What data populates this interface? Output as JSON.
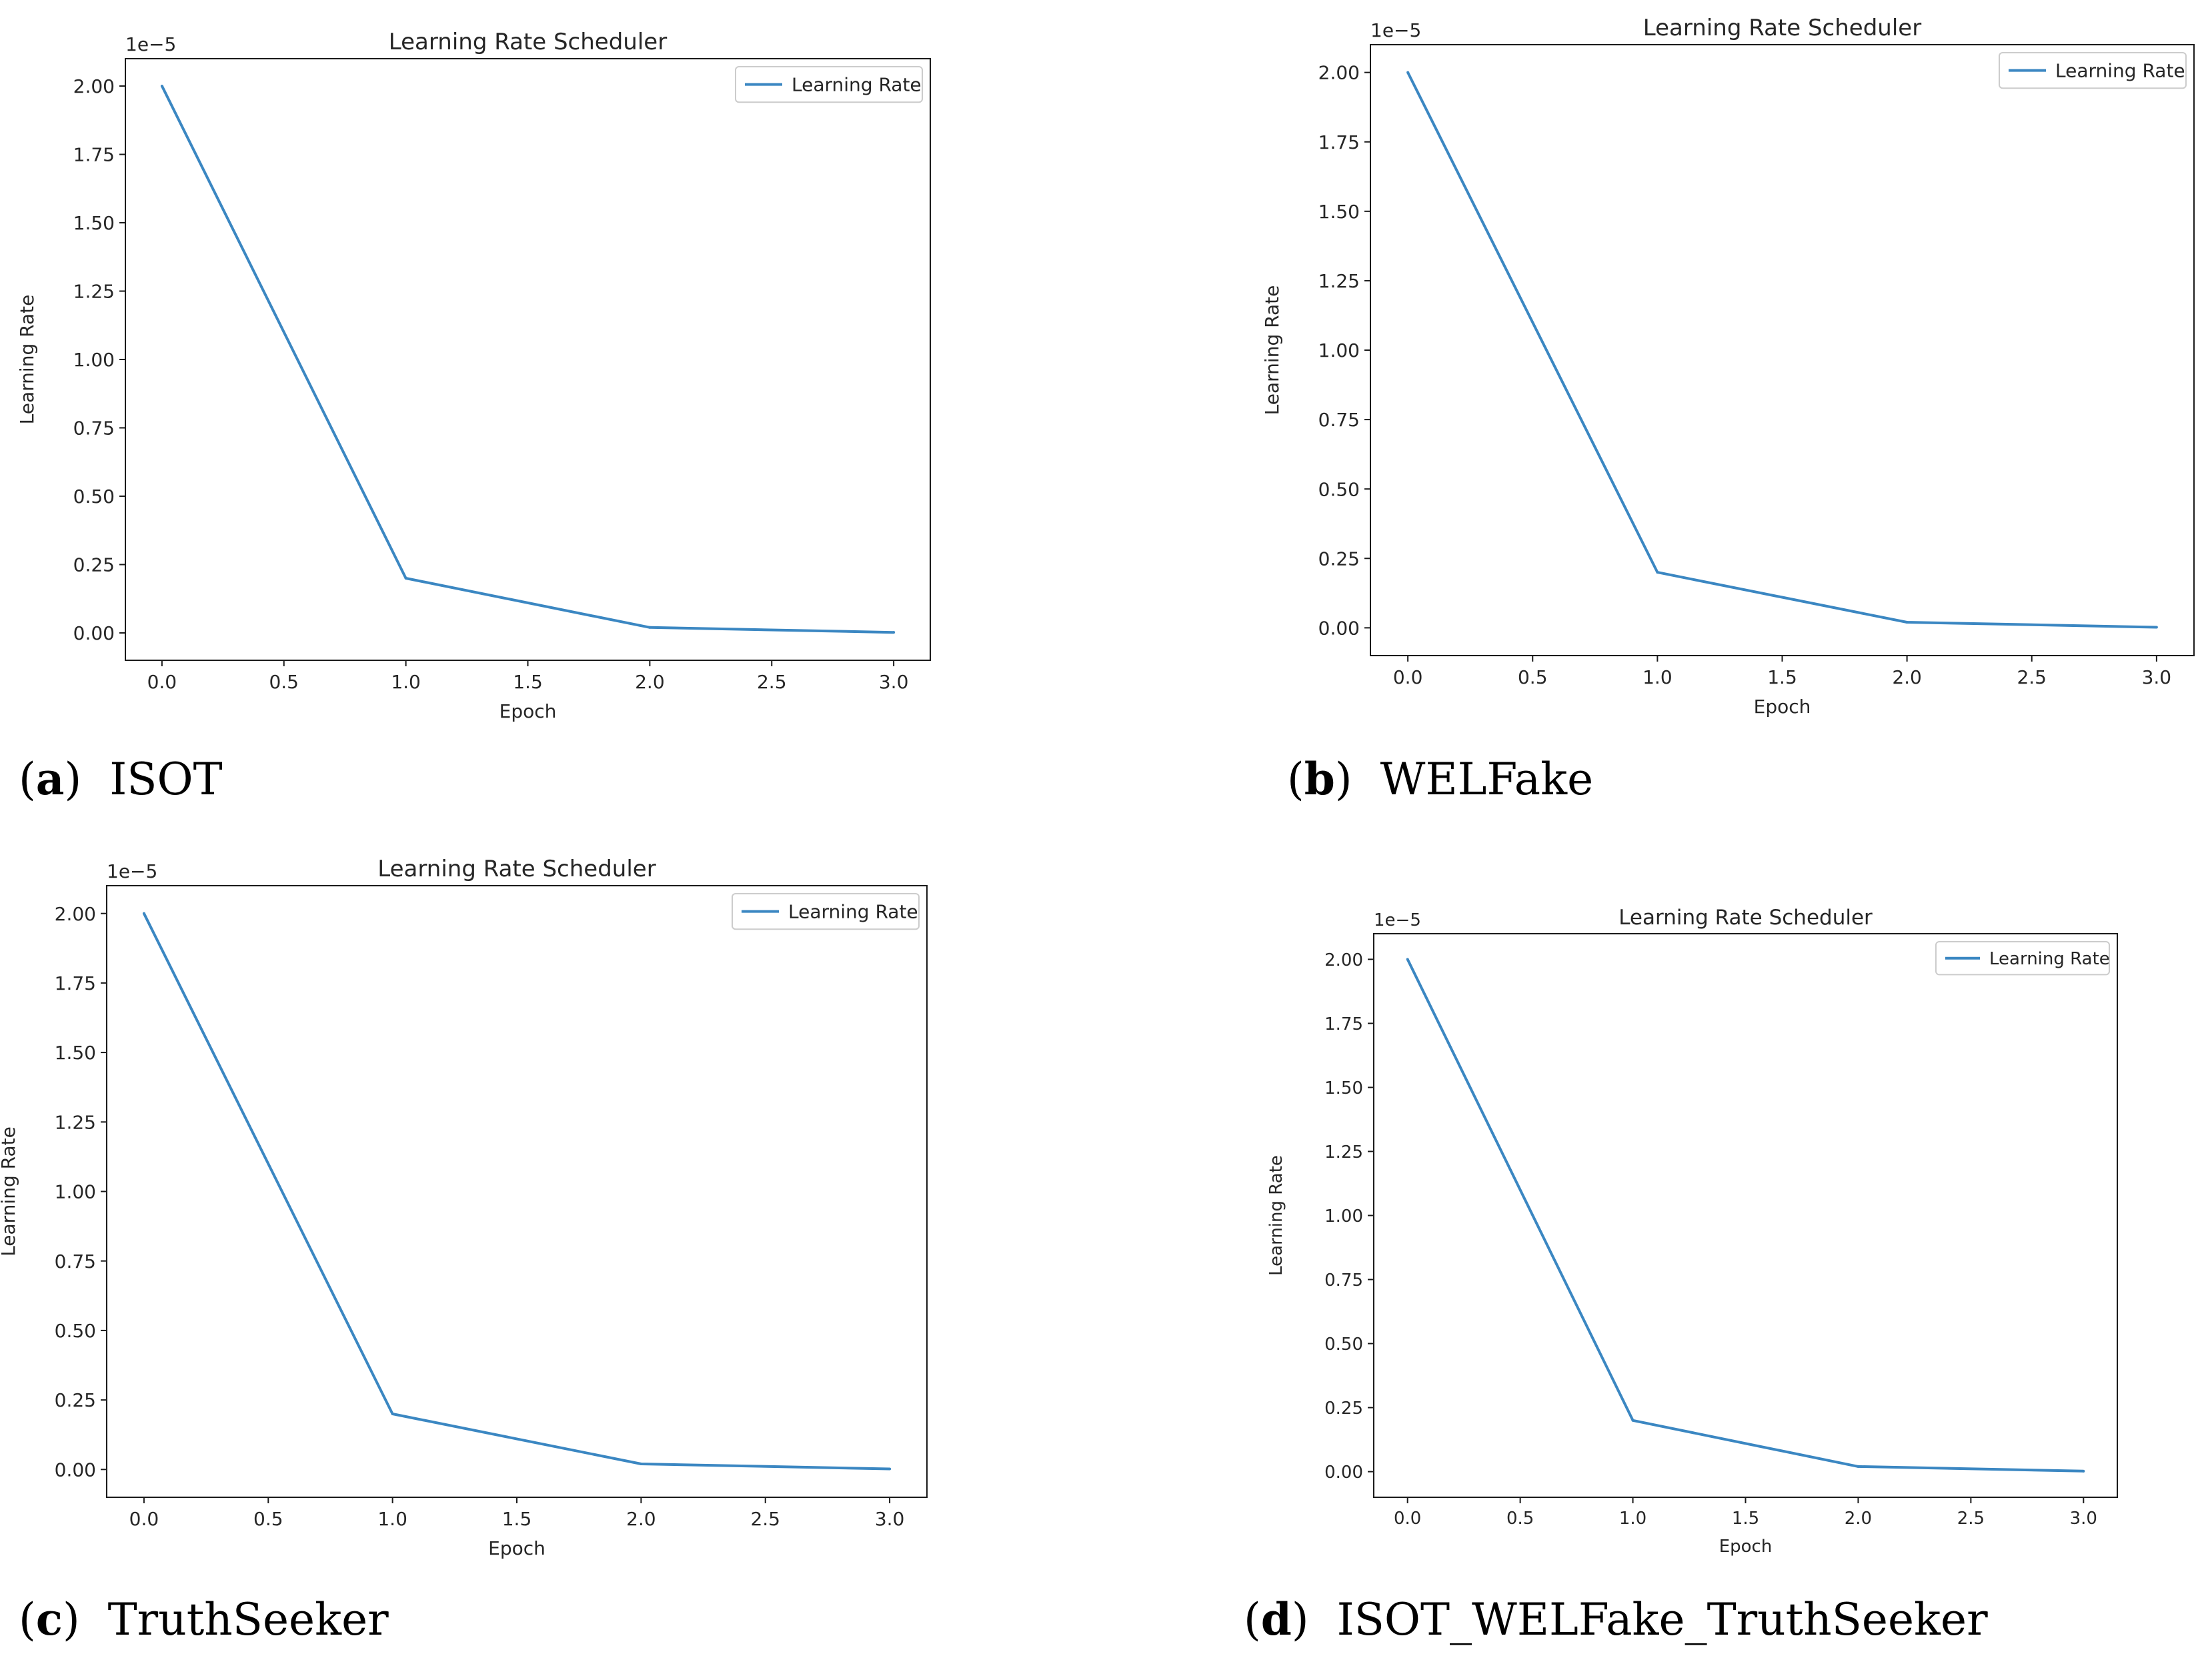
{
  "figure": {
    "panels": [
      {
        "letter": "a",
        "caption": "ISOT",
        "chart": {
          "type": "line",
          "title": "Learning Rate Scheduler",
          "xlabel": "Epoch",
          "ylabel": "Learning Rate",
          "y_offset_label": "1e−5",
          "legend": "Learning Rate",
          "legend_position": "top-right",
          "x": [
            0,
            1,
            2,
            3
          ],
          "y": [
            2.0,
            0.2,
            0.02,
            0.002
          ],
          "xlim": [
            -0.15,
            3.15
          ],
          "ylim": [
            -0.1,
            2.1
          ],
          "xticks": [
            "0.0",
            "0.5",
            "1.0",
            "1.5",
            "2.0",
            "2.5",
            "3.0"
          ],
          "yticks": [
            "0.00",
            "0.25",
            "0.50",
            "0.75",
            "1.00",
            "1.25",
            "1.50",
            "1.75",
            "2.00"
          ],
          "color": "#3b87c2"
        }
      },
      {
        "letter": "b",
        "caption": "WELFake",
        "chart": {
          "type": "line",
          "title": "Learning Rate Scheduler",
          "xlabel": "Epoch",
          "ylabel": "Learning Rate",
          "y_offset_label": "1e−5",
          "legend": "Learning Rate",
          "legend_position": "top-right",
          "x": [
            0,
            1,
            2,
            3
          ],
          "y": [
            2.0,
            0.2,
            0.02,
            0.002
          ],
          "xlim": [
            -0.15,
            3.15
          ],
          "ylim": [
            -0.1,
            2.1
          ],
          "xticks": [
            "0.0",
            "0.5",
            "1.0",
            "1.5",
            "2.0",
            "2.5",
            "3.0"
          ],
          "yticks": [
            "0.00",
            "0.25",
            "0.50",
            "0.75",
            "1.00",
            "1.25",
            "1.50",
            "1.75",
            "2.00"
          ],
          "color": "#3b87c2"
        }
      },
      {
        "letter": "c",
        "caption": "TruthSeeker",
        "chart": {
          "type": "line",
          "title": "Learning Rate Scheduler",
          "xlabel": "Epoch",
          "ylabel": "Learning Rate",
          "y_offset_label": "1e−5",
          "legend": "Learning Rate",
          "legend_position": "top-right",
          "x": [
            0,
            1,
            2,
            3
          ],
          "y": [
            2.0,
            0.2,
            0.02,
            0.002
          ],
          "xlim": [
            -0.15,
            3.15
          ],
          "ylim": [
            -0.1,
            2.1
          ],
          "xticks": [
            "0.0",
            "0.5",
            "1.0",
            "1.5",
            "2.0",
            "2.5",
            "3.0"
          ],
          "yticks": [
            "0.00",
            "0.25",
            "0.50",
            "0.75",
            "1.00",
            "1.25",
            "1.50",
            "1.75",
            "2.00"
          ],
          "color": "#3b87c2"
        }
      },
      {
        "letter": "d",
        "caption": "ISOT_WELFake_TruthSeeker",
        "chart": {
          "type": "line",
          "title": "Learning Rate Scheduler",
          "xlabel": "Epoch",
          "ylabel": "Learning Rate",
          "y_offset_label": "1e−5",
          "legend": "Learning Rate",
          "legend_position": "top-right",
          "x": [
            0,
            1,
            2,
            3
          ],
          "y": [
            2.0,
            0.2,
            0.02,
            0.002
          ],
          "xlim": [
            -0.15,
            3.15
          ],
          "ylim": [
            -0.1,
            2.1
          ],
          "xticks": [
            "0.0",
            "0.5",
            "1.0",
            "1.5",
            "2.0",
            "2.5",
            "3.0"
          ],
          "yticks": [
            "0.00",
            "0.25",
            "0.50",
            "0.75",
            "1.00",
            "1.25",
            "1.50",
            "1.75",
            "2.00"
          ],
          "color": "#3b87c2"
        }
      }
    ]
  },
  "chart_data": [
    {
      "type": "line",
      "title": "Learning Rate Scheduler",
      "xlabel": "Epoch",
      "ylabel": "Learning Rate",
      "y_scale_note": "1e−5",
      "series": [
        {
          "name": "Learning Rate",
          "x": [
            0,
            1,
            2,
            3
          ],
          "values": [
            2.0,
            0.2,
            0.02,
            0.002
          ]
        }
      ],
      "xlim": [
        -0.15,
        3.15
      ],
      "ylim": [
        -0.1,
        2.1
      ],
      "legend": "top-right",
      "panel": "ISOT"
    },
    {
      "type": "line",
      "title": "Learning Rate Scheduler",
      "xlabel": "Epoch",
      "ylabel": "Learning Rate",
      "y_scale_note": "1e−5",
      "series": [
        {
          "name": "Learning Rate",
          "x": [
            0,
            1,
            2,
            3
          ],
          "values": [
            2.0,
            0.2,
            0.02,
            0.002
          ]
        }
      ],
      "xlim": [
        -0.15,
        3.15
      ],
      "ylim": [
        -0.1,
        2.1
      ],
      "legend": "top-right",
      "panel": "WELFake"
    },
    {
      "type": "line",
      "title": "Learning Rate Scheduler",
      "xlabel": "Epoch",
      "ylabel": "Learning Rate",
      "y_scale_note": "1e−5",
      "series": [
        {
          "name": "Learning Rate",
          "x": [
            0,
            1,
            2,
            3
          ],
          "values": [
            2.0,
            0.2,
            0.02,
            0.002
          ]
        }
      ],
      "xlim": [
        -0.15,
        3.15
      ],
      "ylim": [
        -0.1,
        2.1
      ],
      "legend": "top-right",
      "panel": "TruthSeeker"
    },
    {
      "type": "line",
      "title": "Learning Rate Scheduler",
      "xlabel": "Epoch",
      "ylabel": "Learning Rate",
      "y_scale_note": "1e−5",
      "series": [
        {
          "name": "Learning Rate",
          "x": [
            0,
            1,
            2,
            3
          ],
          "values": [
            2.0,
            0.2,
            0.02,
            0.002
          ]
        }
      ],
      "xlim": [
        -0.15,
        3.15
      ],
      "ylim": [
        -0.1,
        2.1
      ],
      "legend": "top-right",
      "panel": "ISOT_WELFake_TruthSeeker"
    }
  ]
}
